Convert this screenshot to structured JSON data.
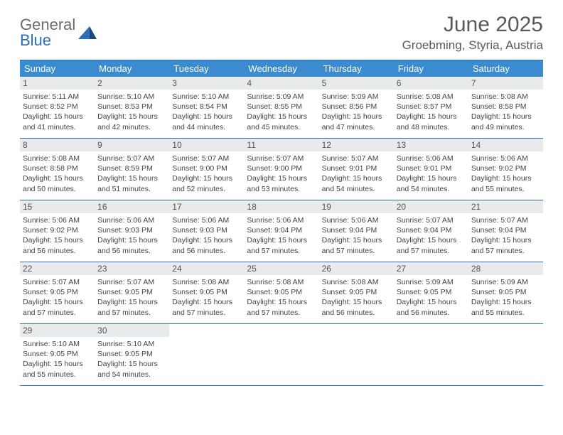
{
  "logo": {
    "text1": "General",
    "text2": "Blue"
  },
  "title": "June 2025",
  "subtitle": "Groebming, Styria, Austria",
  "colors": {
    "header_bg": "#3a8bd0",
    "header_text": "#ffffff",
    "border": "#2d6fb5",
    "daynum_bg": "#e9eaeb",
    "text": "#444444",
    "title_color": "#5a5a5a"
  },
  "weekdays": [
    "Sunday",
    "Monday",
    "Tuesday",
    "Wednesday",
    "Thursday",
    "Friday",
    "Saturday"
  ],
  "weeks": [
    [
      {
        "n": "1",
        "sr": "5:11 AM",
        "ss": "8:52 PM",
        "dl": "15 hours and 41 minutes."
      },
      {
        "n": "2",
        "sr": "5:10 AM",
        "ss": "8:53 PM",
        "dl": "15 hours and 42 minutes."
      },
      {
        "n": "3",
        "sr": "5:10 AM",
        "ss": "8:54 PM",
        "dl": "15 hours and 44 minutes."
      },
      {
        "n": "4",
        "sr": "5:09 AM",
        "ss": "8:55 PM",
        "dl": "15 hours and 45 minutes."
      },
      {
        "n": "5",
        "sr": "5:09 AM",
        "ss": "8:56 PM",
        "dl": "15 hours and 47 minutes."
      },
      {
        "n": "6",
        "sr": "5:08 AM",
        "ss": "8:57 PM",
        "dl": "15 hours and 48 minutes."
      },
      {
        "n": "7",
        "sr": "5:08 AM",
        "ss": "8:58 PM",
        "dl": "15 hours and 49 minutes."
      }
    ],
    [
      {
        "n": "8",
        "sr": "5:08 AM",
        "ss": "8:58 PM",
        "dl": "15 hours and 50 minutes."
      },
      {
        "n": "9",
        "sr": "5:07 AM",
        "ss": "8:59 PM",
        "dl": "15 hours and 51 minutes."
      },
      {
        "n": "10",
        "sr": "5:07 AM",
        "ss": "9:00 PM",
        "dl": "15 hours and 52 minutes."
      },
      {
        "n": "11",
        "sr": "5:07 AM",
        "ss": "9:00 PM",
        "dl": "15 hours and 53 minutes."
      },
      {
        "n": "12",
        "sr": "5:07 AM",
        "ss": "9:01 PM",
        "dl": "15 hours and 54 minutes."
      },
      {
        "n": "13",
        "sr": "5:06 AM",
        "ss": "9:01 PM",
        "dl": "15 hours and 54 minutes."
      },
      {
        "n": "14",
        "sr": "5:06 AM",
        "ss": "9:02 PM",
        "dl": "15 hours and 55 minutes."
      }
    ],
    [
      {
        "n": "15",
        "sr": "5:06 AM",
        "ss": "9:02 PM",
        "dl": "15 hours and 56 minutes."
      },
      {
        "n": "16",
        "sr": "5:06 AM",
        "ss": "9:03 PM",
        "dl": "15 hours and 56 minutes."
      },
      {
        "n": "17",
        "sr": "5:06 AM",
        "ss": "9:03 PM",
        "dl": "15 hours and 56 minutes."
      },
      {
        "n": "18",
        "sr": "5:06 AM",
        "ss": "9:04 PM",
        "dl": "15 hours and 57 minutes."
      },
      {
        "n": "19",
        "sr": "5:06 AM",
        "ss": "9:04 PM",
        "dl": "15 hours and 57 minutes."
      },
      {
        "n": "20",
        "sr": "5:07 AM",
        "ss": "9:04 PM",
        "dl": "15 hours and 57 minutes."
      },
      {
        "n": "21",
        "sr": "5:07 AM",
        "ss": "9:04 PM",
        "dl": "15 hours and 57 minutes."
      }
    ],
    [
      {
        "n": "22",
        "sr": "5:07 AM",
        "ss": "9:05 PM",
        "dl": "15 hours and 57 minutes."
      },
      {
        "n": "23",
        "sr": "5:07 AM",
        "ss": "9:05 PM",
        "dl": "15 hours and 57 minutes."
      },
      {
        "n": "24",
        "sr": "5:08 AM",
        "ss": "9:05 PM",
        "dl": "15 hours and 57 minutes."
      },
      {
        "n": "25",
        "sr": "5:08 AM",
        "ss": "9:05 PM",
        "dl": "15 hours and 57 minutes."
      },
      {
        "n": "26",
        "sr": "5:08 AM",
        "ss": "9:05 PM",
        "dl": "15 hours and 56 minutes."
      },
      {
        "n": "27",
        "sr": "5:09 AM",
        "ss": "9:05 PM",
        "dl": "15 hours and 56 minutes."
      },
      {
        "n": "28",
        "sr": "5:09 AM",
        "ss": "9:05 PM",
        "dl": "15 hours and 55 minutes."
      }
    ],
    [
      {
        "n": "29",
        "sr": "5:10 AM",
        "ss": "9:05 PM",
        "dl": "15 hours and 55 minutes."
      },
      {
        "n": "30",
        "sr": "5:10 AM",
        "ss": "9:05 PM",
        "dl": "15 hours and 54 minutes."
      },
      null,
      null,
      null,
      null,
      null
    ]
  ],
  "labels": {
    "sunrise": "Sunrise:",
    "sunset": "Sunset:",
    "daylight": "Daylight:"
  }
}
